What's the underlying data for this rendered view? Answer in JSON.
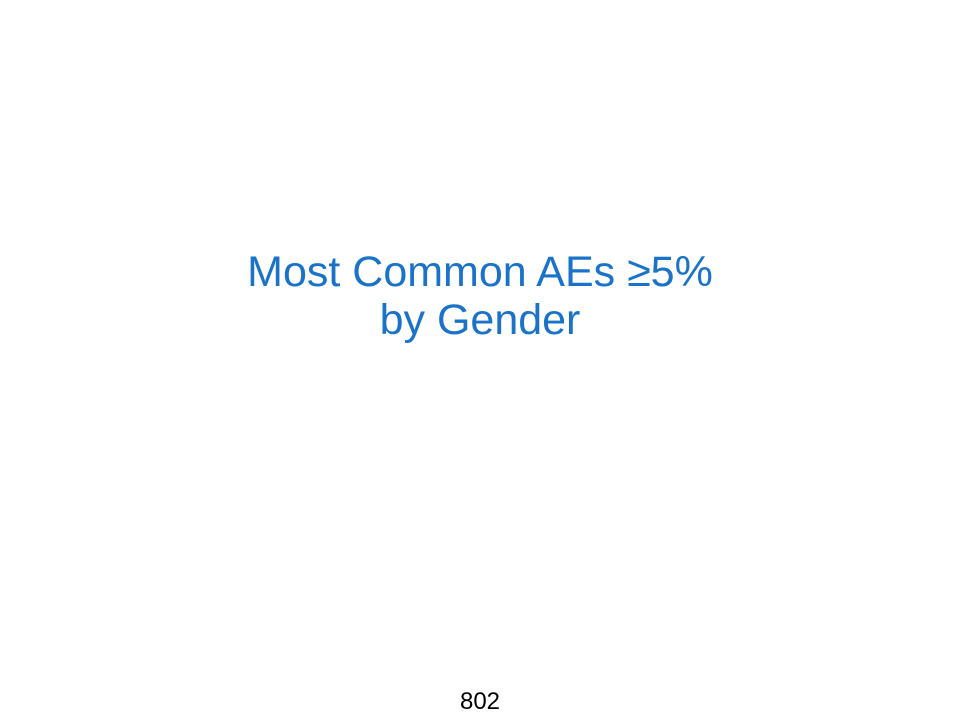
{
  "slide": {
    "title_line_1": "Most Common AEs ≥5%",
    "title_line_2": "by Gender",
    "page_number": "802",
    "title_color": "#1a73c8"
  }
}
